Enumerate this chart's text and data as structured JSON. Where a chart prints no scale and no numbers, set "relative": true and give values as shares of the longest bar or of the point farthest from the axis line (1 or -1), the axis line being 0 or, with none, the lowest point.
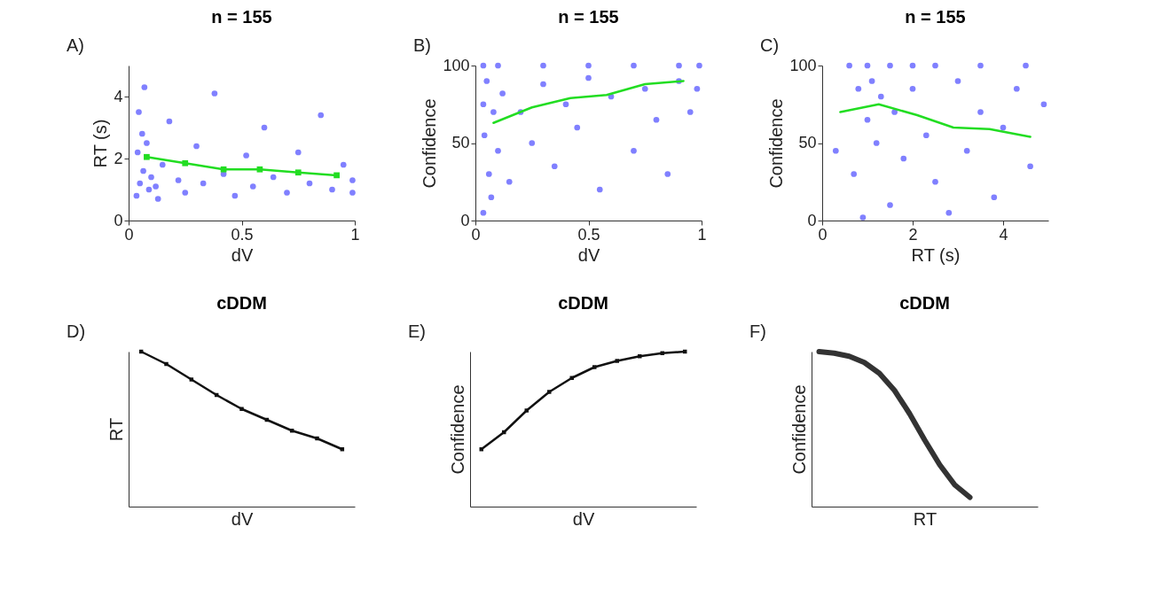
{
  "chart_data": [
    {
      "type": "scatter",
      "title": "n = 155",
      "xlabel": "dV",
      "ylabel": "RT (s)",
      "annotations": [
        "A)"
      ],
      "xlim": [
        0,
        1
      ],
      "xticks": [
        0,
        0.5,
        1
      ],
      "ylim": [
        0,
        5
      ],
      "yticks": [
        0,
        2,
        4
      ],
      "grid": false,
      "series": [
        {
          "color": "#8080ff",
          "x": [
            0.035,
            0.05,
            0.065,
            0.04,
            0.06,
            0.045,
            0.07,
            0.09,
            0.1,
            0.13,
            0.08,
            0.12,
            0.15,
            0.18,
            0.22,
            0.25,
            0.3,
            0.33,
            0.38,
            0.42,
            0.47,
            0.52,
            0.55,
            0.6,
            0.64,
            0.7,
            0.75,
            0.8,
            0.85,
            0.9,
            0.95,
            0.99,
            0.99
          ],
          "values": [
            0.8,
            1.2,
            1.6,
            2.2,
            2.8,
            3.5,
            4.3,
            1.0,
            1.4,
            0.7,
            2.5,
            1.1,
            1.8,
            3.2,
            1.3,
            0.9,
            2.4,
            1.2,
            4.1,
            1.5,
            0.8,
            2.1,
            1.1,
            3.0,
            1.4,
            0.9,
            2.2,
            1.2,
            3.4,
            1.0,
            1.8,
            0.9,
            1.3
          ]
        },
        {
          "type": "line",
          "color": "#22dd22",
          "marker": "square",
          "x": [
            0.08,
            0.25,
            0.42,
            0.58,
            0.75,
            0.92
          ],
          "values": [
            2.05,
            1.85,
            1.65,
            1.65,
            1.55,
            1.46
          ]
        }
      ]
    },
    {
      "type": "scatter",
      "title": "n = 155",
      "xlabel": "dV",
      "ylabel": "Confidence",
      "annotations": [
        "B)"
      ],
      "xlim": [
        0,
        1
      ],
      "xticks": [
        0,
        0.5,
        1
      ],
      "ylim": [
        0,
        100
      ],
      "yticks": [
        0,
        50,
        100
      ],
      "grid": false,
      "series": [
        {
          "color": "#8080ff",
          "x": [
            0.035,
            0.1,
            0.3,
            0.5,
            0.7,
            0.9,
            0.99,
            0.035,
            0.06,
            0.04,
            0.035,
            0.05,
            0.07,
            0.08,
            0.1,
            0.12,
            0.15,
            0.2,
            0.25,
            0.3,
            0.35,
            0.4,
            0.45,
            0.5,
            0.55,
            0.6,
            0.7,
            0.75,
            0.8,
            0.85,
            0.9,
            0.95,
            0.98
          ],
          "values": [
            100,
            100,
            100,
            100,
            100,
            100,
            100,
            5,
            30,
            55,
            75,
            90,
            15,
            70,
            45,
            82,
            25,
            70,
            50,
            88,
            35,
            75,
            60,
            92,
            20,
            80,
            45,
            85,
            65,
            30,
            90,
            70,
            85
          ]
        },
        {
          "type": "line",
          "color": "#22dd22",
          "x": [
            0.08,
            0.25,
            0.42,
            0.58,
            0.75,
            0.92
          ],
          "values": [
            63,
            73,
            79,
            81,
            88,
            90
          ]
        }
      ]
    },
    {
      "type": "scatter",
      "title": "n = 155",
      "xlabel": "RT (s)",
      "ylabel": "Confidence",
      "annotations": [
        "C)"
      ],
      "xlim": [
        0,
        5
      ],
      "xticks": [
        0,
        2,
        4
      ],
      "ylim": [
        0,
        100
      ],
      "yticks": [
        0,
        50,
        100
      ],
      "grid": false,
      "series": [
        {
          "color": "#8080ff",
          "x": [
            0.6,
            1.0,
            1.5,
            2.0,
            2.5,
            3.5,
            4.5,
            0.8,
            1.1,
            1.3,
            1.6,
            1.0,
            1.2,
            0.7,
            1.5,
            0.9,
            2.0,
            2.3,
            2.5,
            1.8,
            3.0,
            3.2,
            3.5,
            3.8,
            4.0,
            4.3,
            4.6,
            4.9,
            2.8,
            0.3
          ],
          "values": [
            100,
            100,
            100,
            100,
            100,
            100,
            100,
            85,
            90,
            80,
            70,
            65,
            50,
            30,
            10,
            2,
            85,
            55,
            25,
            40,
            90,
            45,
            70,
            15,
            60,
            85,
            35,
            75,
            5,
            45
          ]
        },
        {
          "type": "line",
          "color": "#22dd22",
          "x": [
            0.4,
            1.25,
            2.1,
            2.9,
            3.7,
            4.6
          ],
          "values": [
            70,
            75,
            68,
            60,
            59,
            54
          ]
        }
      ]
    },
    {
      "type": "line",
      "title": "cDDM",
      "xlabel": "dV",
      "ylabel": "RT",
      "annotations": [
        "D)"
      ],
      "relative": true,
      "tick_labels": false,
      "grid": false,
      "categories": [
        null,
        null,
        null,
        null,
        null,
        null,
        null,
        null,
        null
      ],
      "series": [
        {
          "color": "#111111",
          "marker": "square",
          "values": [
            1,
            0.92,
            0.82,
            0.72,
            0.63,
            0.56,
            0.49,
            0.44,
            0.37
          ]
        }
      ]
    },
    {
      "type": "line",
      "title": "cDDM",
      "xlabel": "dV",
      "ylabel": "Confidence",
      "annotations": [
        "E)"
      ],
      "relative": true,
      "tick_labels": false,
      "grid": false,
      "categories": [
        null,
        null,
        null,
        null,
        null,
        null,
        null,
        null,
        null,
        null
      ],
      "series": [
        {
          "color": "#111111",
          "marker": "square",
          "values": [
            0.37,
            0.48,
            0.62,
            0.74,
            0.83,
            0.9,
            0.94,
            0.97,
            0.99,
            1
          ]
        }
      ]
    },
    {
      "type": "line",
      "title": "cDDM",
      "xlabel": "RT",
      "ylabel": "Confidence",
      "annotations": [
        "F)"
      ],
      "relative": true,
      "tick_labels": false,
      "grid": false,
      "categories": [
        null,
        null,
        null,
        null,
        null,
        null,
        null,
        null,
        null,
        null,
        null,
        null,
        null,
        null,
        null
      ],
      "series": [
        {
          "color": "#333333",
          "values": [
            1,
            0.99,
            0.97,
            0.93,
            0.86,
            0.75,
            0.6,
            0.43,
            0.27,
            0.14,
            0.06,
            null,
            null,
            null,
            null
          ]
        }
      ]
    }
  ]
}
